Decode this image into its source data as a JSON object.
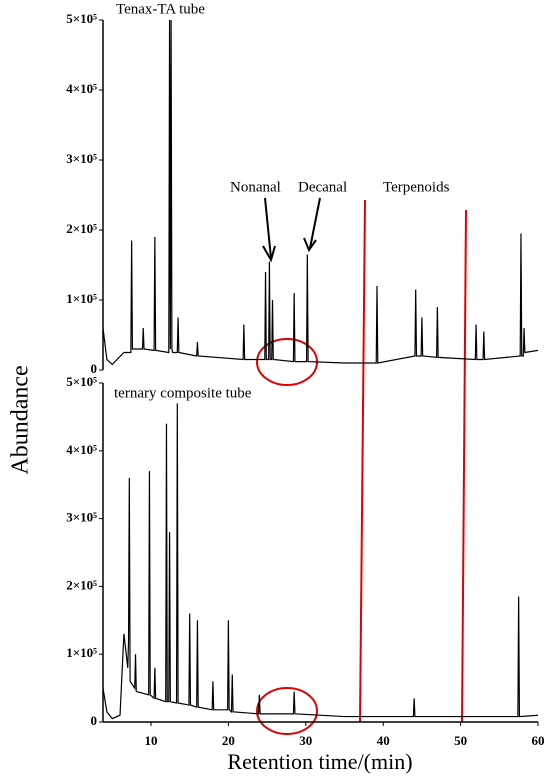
{
  "chart_data": [
    {
      "type": "line",
      "label": "Tenax-TA tube",
      "ylabel": "Abundance",
      "annotations": [
        "Nonanal",
        "Decanal",
        "Terpenoids"
      ],
      "xlim": [
        3.8,
        60
      ],
      "ylim": [
        0,
        500000
      ],
      "yticks": [
        0,
        {
          "value": 100000,
          "label": "1×10⁵"
        },
        {
          "value": 200000,
          "label": "2×10⁵"
        },
        {
          "value": 300000,
          "label": "3×10⁵"
        },
        {
          "value": 400000,
          "label": "4×10⁵"
        },
        {
          "value": 500000,
          "label": "5×10⁵"
        }
      ],
      "series": [
        {
          "color": "#000000",
          "x": [
            3.8,
            4.3,
            5,
            6.5,
            7.4,
            7.5,
            7.6,
            8.5,
            8.9,
            9,
            9.1,
            10.4,
            10.5,
            10.6,
            12.3,
            12.4,
            12.5,
            12.6,
            12.7,
            12.8,
            13.4,
            13.5,
            13.6,
            15.9,
            16,
            16.1,
            21.9,
            22,
            22.1,
            24.7,
            24.8,
            24.9,
            25.2,
            25.3,
            25.4,
            25.6,
            25.7,
            25.8,
            28.4,
            28.5,
            28.6,
            30.1,
            30.2,
            30.3,
            35,
            39.1,
            39.2,
            39.3,
            44.1,
            44.2,
            44.3,
            44.9,
            45,
            45.1,
            46.9,
            47,
            47.1,
            51.9,
            52,
            52.1,
            52.9,
            53,
            53.1,
            57.7,
            57.8,
            57.9,
            58.1,
            58.2,
            58.3,
            60
          ],
          "values": [
            60000,
            15000,
            8000,
            25000,
            25000,
            185000,
            30000,
            30000,
            30000,
            60000,
            30000,
            28000,
            190000,
            28000,
            25000,
            500000,
            30000,
            500000,
            30000,
            25000,
            25000,
            75000,
            25000,
            20000,
            40000,
            20000,
            15000,
            65000,
            15000,
            15000,
            140000,
            15000,
            15000,
            155000,
            15000,
            15000,
            100000,
            15000,
            12000,
            110000,
            12000,
            12000,
            165000,
            12000,
            10000,
            10000,
            120000,
            10000,
            20000,
            115000,
            20000,
            20000,
            75000,
            20000,
            18000,
            90000,
            18000,
            15000,
            65000,
            15000,
            15000,
            55000,
            15000,
            20000,
            195000,
            20000,
            20000,
            60000,
            25000,
            28000
          ]
        }
      ]
    },
    {
      "type": "line",
      "label": "ternary composite tube",
      "xlabel": "Retention time/(min)",
      "xlim": [
        3.8,
        60
      ],
      "ylim": [
        0,
        500000
      ],
      "xticks": [
        10,
        20,
        30,
        40,
        50,
        60
      ],
      "yticks": [
        0,
        {
          "value": 100000,
          "label": "1×10⁵"
        },
        {
          "value": 200000,
          "label": "2×10⁵"
        },
        {
          "value": 300000,
          "label": "3×10⁵"
        },
        {
          "value": 400000,
          "label": "4×10⁵"
        },
        {
          "value": 500000,
          "label": "5×10⁵"
        }
      ],
      "series": [
        {
          "color": "#000000",
          "x": [
            3.8,
            4.3,
            5,
            6,
            6.5,
            7,
            7.1,
            7.2,
            7.3,
            7.9,
            8,
            8.1,
            9.7,
            9.8,
            9.9,
            10.4,
            10.5,
            10.6,
            11.9,
            12,
            12.1,
            12.3,
            12.4,
            12.5,
            13.3,
            13.4,
            13.5,
            14.9,
            15,
            15.1,
            15.9,
            16,
            16.1,
            17.9,
            18,
            18.1,
            19.9,
            20,
            20.1,
            20.4,
            20.5,
            20.6,
            23.9,
            24,
            24.1,
            28.4,
            28.5,
            28.6,
            35,
            43.9,
            44,
            44.1,
            50,
            57.4,
            57.5,
            57.6,
            60
          ],
          "values": [
            50000,
            15000,
            5000,
            10000,
            130000,
            80000,
            120000,
            360000,
            60000,
            50000,
            100000,
            45000,
            40000,
            370000,
            40000,
            35000,
            80000,
            35000,
            30000,
            440000,
            30000,
            30000,
            280000,
            30000,
            28000,
            470000,
            28000,
            25000,
            160000,
            25000,
            22000,
            150000,
            22000,
            18000,
            60000,
            18000,
            18000,
            150000,
            18000,
            15000,
            70000,
            15000,
            12000,
            40000,
            12000,
            12000,
            45000,
            12000,
            8000,
            8000,
            35000,
            8000,
            8000,
            8000,
            185000,
            8000,
            10000
          ]
        }
      ]
    }
  ]
}
